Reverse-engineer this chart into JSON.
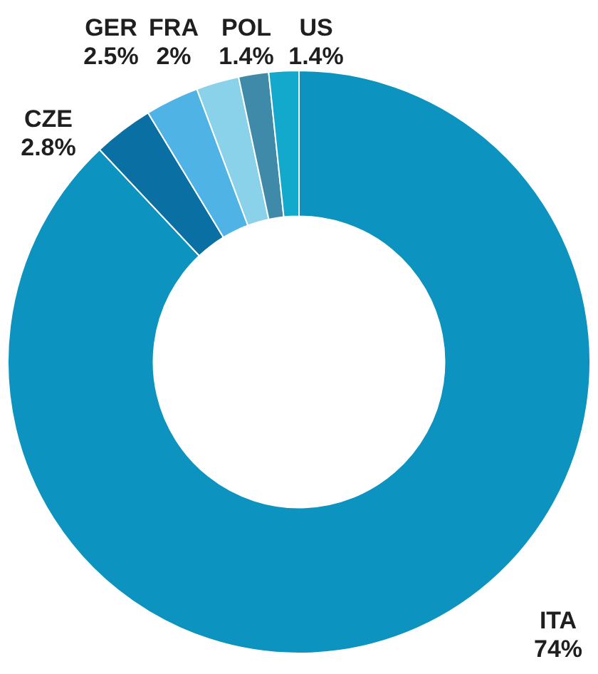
{
  "chart_data": {
    "type": "donut",
    "categories": [
      "ITA",
      "CZE",
      "GER",
      "FRA",
      "POL",
      "US"
    ],
    "values": [
      74,
      2.8,
      2.5,
      2,
      1.4,
      1.4
    ],
    "value_labels": [
      "74%",
      "2.8%",
      "2.5%",
      "2%",
      "1.4%",
      "1.4%"
    ],
    "colors": [
      "#0c93bf",
      "#0a6fa3",
      "#4fb3e6",
      "#8ad2ea",
      "#3f8aa9",
      "#13a9cc"
    ],
    "legend": false
  }
}
